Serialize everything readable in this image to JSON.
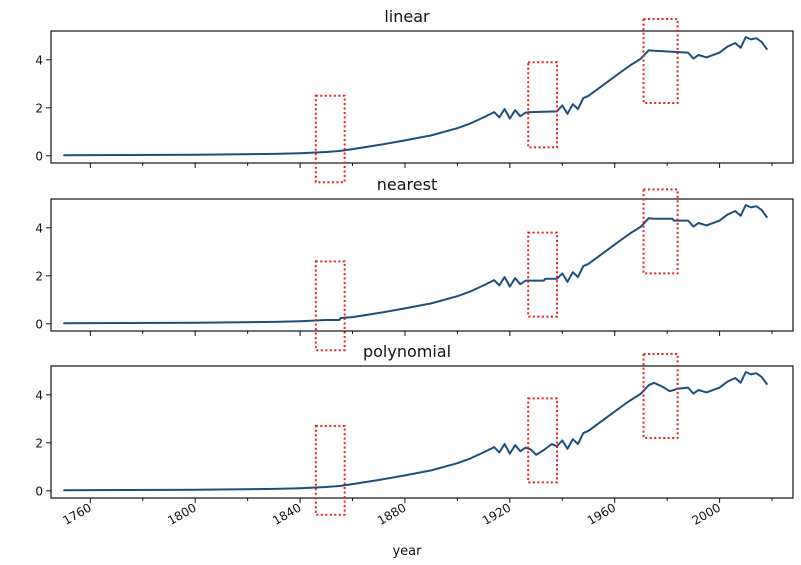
{
  "colors": {
    "line": "#1f4e79",
    "highlight": "#e02020"
  },
  "xlabel": "year",
  "x_tick_labels": [
    "1760",
    "1800",
    "1840",
    "1880",
    "1920",
    "1960",
    "2000"
  ],
  "y_tick_labels": [
    "0",
    "2",
    "4"
  ],
  "chart_data": [
    {
      "type": "line",
      "title": "linear",
      "xlabel": "year",
      "ylabel": "",
      "xlim": [
        1745,
        2028
      ],
      "ylim": [
        -0.3,
        5.2
      ],
      "x_ticks": [
        1760,
        1800,
        1840,
        1880,
        1920,
        1960,
        2000
      ],
      "y_ticks": [
        0,
        2,
        4
      ],
      "grid": false,
      "highlight_regions": [
        {
          "x": [
            1846,
            1857
          ],
          "y": [
            -1.1,
            2.5
          ]
        },
        {
          "x": [
            1927,
            1938
          ],
          "y": [
            0.35,
            3.9
          ]
        },
        {
          "x": [
            1971,
            1984
          ],
          "y": [
            2.2,
            5.7
          ]
        }
      ],
      "series": [
        {
          "x": [
            1750,
            1800,
            1830,
            1840,
            1850,
            1855,
            1860,
            1870,
            1880,
            1890,
            1900,
            1905,
            1910,
            1914,
            1916,
            1918,
            1920,
            1922,
            1924,
            1926,
            1928,
            1938,
            1940,
            1942,
            1944,
            1946,
            1948,
            1950,
            1955,
            1960,
            1965,
            1970,
            1973,
            1975,
            1988,
            1990,
            1992,
            1995,
            2000,
            2003,
            2006,
            2008,
            2010,
            2012,
            2014,
            2016,
            2018
          ],
          "y": [
            0.02,
            0.04,
            0.08,
            0.11,
            0.16,
            0.2,
            0.28,
            0.45,
            0.64,
            0.85,
            1.15,
            1.35,
            1.6,
            1.82,
            1.6,
            1.95,
            1.55,
            1.9,
            1.65,
            1.8,
            1.82,
            1.85,
            2.1,
            1.75,
            2.15,
            1.95,
            2.4,
            2.5,
            2.9,
            3.3,
            3.7,
            4.05,
            4.4,
            4.38,
            4.3,
            4.05,
            4.2,
            4.1,
            4.3,
            4.55,
            4.7,
            4.5,
            4.95,
            4.85,
            4.9,
            4.75,
            4.45
          ]
        }
      ]
    },
    {
      "type": "line",
      "title": "nearest",
      "xlabel": "year",
      "ylabel": "",
      "xlim": [
        1745,
        2028
      ],
      "ylim": [
        -0.3,
        5.2
      ],
      "x_ticks": [
        1760,
        1800,
        1840,
        1880,
        1920,
        1960,
        2000
      ],
      "y_ticks": [
        0,
        2,
        4
      ],
      "grid": false,
      "highlight_regions": [
        {
          "x": [
            1846,
            1857
          ],
          "y": [
            -1.1,
            2.6
          ]
        },
        {
          "x": [
            1927,
            1938
          ],
          "y": [
            0.3,
            3.8
          ]
        },
        {
          "x": [
            1971,
            1984
          ],
          "y": [
            2.1,
            5.6
          ]
        }
      ],
      "series": [
        {
          "x": [
            1750,
            1800,
            1830,
            1840,
            1850,
            1855,
            1855.5,
            1860,
            1870,
            1880,
            1890,
            1900,
            1905,
            1910,
            1914,
            1916,
            1918,
            1920,
            1922,
            1924,
            1926,
            1928,
            1933,
            1933.5,
            1938,
            1940,
            1942,
            1944,
            1946,
            1948,
            1950,
            1955,
            1960,
            1965,
            1970,
            1973,
            1975,
            1982,
            1982.5,
            1988,
            1990,
            1992,
            1995,
            2000,
            2003,
            2006,
            2008,
            2010,
            2012,
            2014,
            2016,
            2018
          ],
          "y": [
            0.02,
            0.04,
            0.08,
            0.11,
            0.16,
            0.16,
            0.24,
            0.28,
            0.45,
            0.64,
            0.85,
            1.15,
            1.35,
            1.6,
            1.82,
            1.6,
            1.95,
            1.55,
            1.9,
            1.65,
            1.8,
            1.8,
            1.8,
            1.88,
            1.88,
            2.1,
            1.75,
            2.15,
            1.95,
            2.4,
            2.5,
            2.9,
            3.3,
            3.7,
            4.05,
            4.4,
            4.38,
            4.38,
            4.3,
            4.3,
            4.05,
            4.2,
            4.1,
            4.3,
            4.55,
            4.7,
            4.5,
            4.95,
            4.85,
            4.9,
            4.75,
            4.45
          ]
        }
      ]
    },
    {
      "type": "line",
      "title": "polynomial",
      "xlabel": "year",
      "ylabel": "",
      "xlim": [
        1745,
        2028
      ],
      "ylim": [
        -0.3,
        5.2
      ],
      "x_ticks": [
        1760,
        1800,
        1840,
        1880,
        1920,
        1960,
        2000
      ],
      "y_ticks": [
        0,
        2,
        4
      ],
      "grid": false,
      "highlight_regions": [
        {
          "x": [
            1846,
            1857
          ],
          "y": [
            -1.0,
            2.7
          ]
        },
        {
          "x": [
            1927,
            1938
          ],
          "y": [
            0.35,
            3.85
          ]
        },
        {
          "x": [
            1971,
            1984
          ],
          "y": [
            2.2,
            5.7
          ]
        }
      ],
      "series": [
        {
          "x": [
            1750,
            1800,
            1830,
            1840,
            1850,
            1855,
            1860,
            1870,
            1880,
            1890,
            1900,
            1905,
            1910,
            1914,
            1916,
            1918,
            1920,
            1922,
            1924,
            1926,
            1928,
            1930,
            1933,
            1936,
            1938,
            1940,
            1942,
            1944,
            1946,
            1948,
            1950,
            1955,
            1960,
            1965,
            1970,
            1973,
            1975,
            1978,
            1981,
            1984,
            1988,
            1990,
            1992,
            1995,
            2000,
            2003,
            2006,
            2008,
            2010,
            2012,
            2014,
            2016,
            2018
          ],
          "y": [
            0.02,
            0.04,
            0.08,
            0.11,
            0.16,
            0.2,
            0.28,
            0.45,
            0.64,
            0.85,
            1.15,
            1.35,
            1.6,
            1.82,
            1.6,
            1.95,
            1.55,
            1.9,
            1.65,
            1.8,
            1.72,
            1.5,
            1.7,
            1.95,
            1.85,
            2.1,
            1.75,
            2.15,
            1.95,
            2.4,
            2.5,
            2.9,
            3.3,
            3.7,
            4.05,
            4.4,
            4.5,
            4.35,
            4.15,
            4.25,
            4.3,
            4.05,
            4.2,
            4.1,
            4.3,
            4.55,
            4.7,
            4.5,
            4.95,
            4.85,
            4.9,
            4.75,
            4.45
          ]
        }
      ]
    }
  ]
}
